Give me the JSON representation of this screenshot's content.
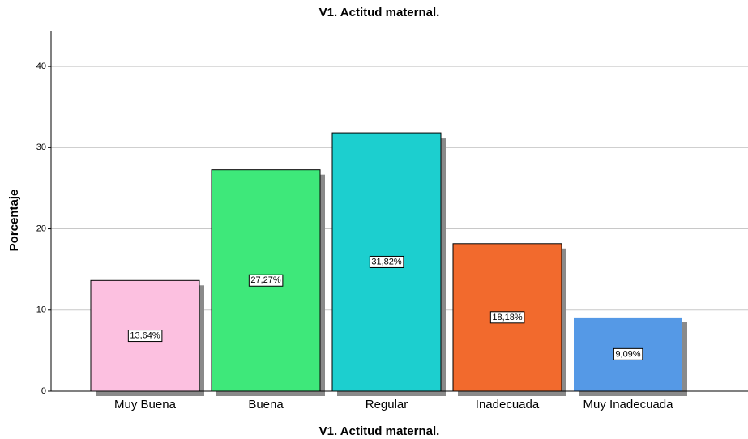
{
  "chart_data": {
    "type": "bar",
    "title": "V1. Actitud maternal.",
    "x_label": "V1. Actitud maternal.",
    "y_label": "Porcentaje",
    "categories": [
      "Muy Buena",
      "Buena",
      "Regular",
      "Inadecuada",
      "Muy Inadecuada"
    ],
    "values": [
      13.64,
      27.27,
      31.82,
      18.18,
      9.09
    ],
    "value_labels": [
      "13,64%",
      "27,27%",
      "31,82%",
      "18,18%",
      "9,09%"
    ],
    "colors": [
      "#fcc0e0",
      "#3ee87a",
      "#1ccfcf",
      "#f26a2d",
      "#5599e6"
    ],
    "ylim": [
      0,
      44.4
    ],
    "yticks": [
      0,
      10,
      20,
      30,
      40
    ],
    "grid": true
  }
}
